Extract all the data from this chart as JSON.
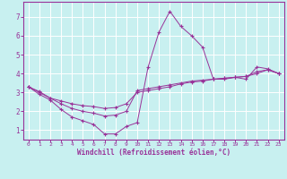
{
  "xlabel": "Windchill (Refroidissement éolien,°C)",
  "background_color": "#c8f0f0",
  "line_color": "#993399",
  "grid_color": "#ffffff",
  "xlim": [
    -0.5,
    23.5
  ],
  "ylim": [
    0.5,
    7.8
  ],
  "xticks": [
    0,
    1,
    2,
    3,
    4,
    5,
    6,
    7,
    8,
    9,
    10,
    11,
    12,
    13,
    14,
    15,
    16,
    17,
    18,
    19,
    20,
    21,
    22,
    23
  ],
  "yticks": [
    1,
    2,
    3,
    4,
    5,
    6,
    7
  ],
  "series": [
    [
      3.3,
      2.9,
      2.6,
      2.1,
      1.7,
      1.5,
      1.3,
      0.8,
      0.8,
      1.2,
      1.4,
      4.35,
      6.2,
      7.3,
      6.5,
      6.0,
      5.4,
      3.7,
      3.7,
      3.8,
      3.7,
      4.35,
      4.25,
      4.0
    ],
    [
      3.3,
      3.0,
      2.7,
      2.4,
      2.15,
      2.0,
      1.9,
      1.75,
      1.8,
      2.0,
      3.1,
      3.2,
      3.3,
      3.4,
      3.5,
      3.6,
      3.65,
      3.7,
      3.75,
      3.8,
      3.85,
      4.1,
      4.2,
      4.0
    ],
    [
      3.3,
      3.05,
      2.7,
      2.55,
      2.4,
      2.3,
      2.25,
      2.15,
      2.2,
      2.4,
      3.0,
      3.1,
      3.2,
      3.3,
      3.45,
      3.55,
      3.6,
      3.7,
      3.75,
      3.8,
      3.85,
      4.0,
      4.2,
      4.0
    ]
  ]
}
